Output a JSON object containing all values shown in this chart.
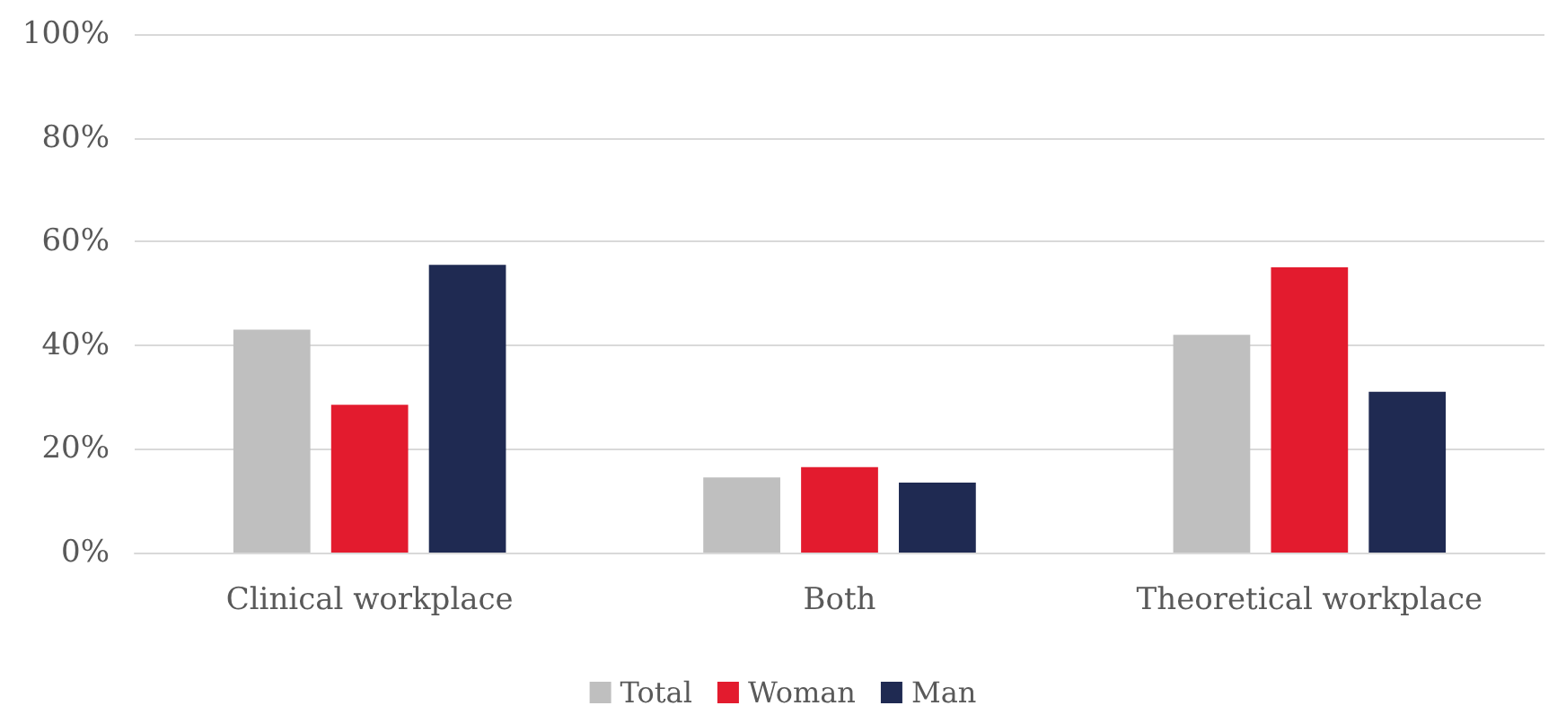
{
  "chart_data": {
    "type": "bar",
    "categories": [
      "Clinical workplace",
      "Both",
      "Theoretical workplace"
    ],
    "series": [
      {
        "name": "Total",
        "color": "#bfbfbf",
        "values": [
          43,
          14.5,
          42
        ]
      },
      {
        "name": "Woman",
        "color": "#e31b2e",
        "values": [
          28.5,
          16.5,
          55
        ]
      },
      {
        "name": "Man",
        "color": "#1f2a52",
        "values": [
          55.5,
          13.5,
          31
        ]
      }
    ],
    "ylim": [
      0,
      100
    ],
    "yticks": [
      {
        "value": 0,
        "label": "0%"
      },
      {
        "value": 20,
        "label": "20%"
      },
      {
        "value": 40,
        "label": "40%"
      },
      {
        "value": 60,
        "label": "60%"
      },
      {
        "value": 80,
        "label": "80%"
      },
      {
        "value": 100,
        "label": "100%"
      }
    ],
    "grid": "y",
    "legend": "bottom"
  }
}
